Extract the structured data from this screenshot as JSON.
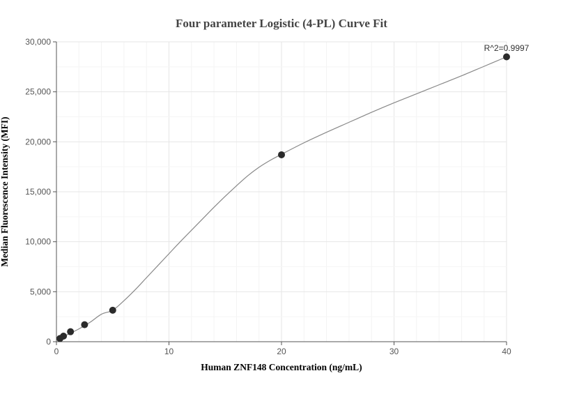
{
  "chart_data": {
    "type": "scatter",
    "title": "Four parameter Logistic (4-PL) Curve Fit",
    "xlabel": "Human ZNF148 Concentration (ng/mL)",
    "ylabel": "Median Fluorescence Intensity (MFI)",
    "xlim": [
      0,
      40
    ],
    "ylim": [
      0,
      30000
    ],
    "x_ticks": [
      0,
      10,
      20,
      30,
      40
    ],
    "x_tick_labels": [
      "0",
      "10",
      "20",
      "30",
      "40"
    ],
    "y_ticks": [
      0,
      5000,
      10000,
      15000,
      20000,
      25000,
      30000
    ],
    "y_tick_labels": [
      "0",
      "5,000",
      "10,000",
      "15,000",
      "20,000",
      "25,000",
      "30,000"
    ],
    "grid": true,
    "series": [
      {
        "type": "scatter",
        "x": [
          0.3125,
          0.625,
          1.25,
          2.5,
          5,
          20,
          40
        ],
        "y": [
          320,
          560,
          1000,
          1700,
          3150,
          18700,
          28500
        ],
        "color": "#2b2b2b"
      },
      {
        "type": "line",
        "x": [
          0,
          0.5,
          1,
          2,
          3,
          4,
          5,
          6,
          7,
          8,
          9,
          10,
          11,
          12,
          13,
          14,
          15,
          16,
          17,
          18,
          19,
          20,
          22,
          24,
          26,
          28,
          30,
          32,
          34,
          36,
          38,
          40
        ],
        "y": [
          300,
          480,
          720,
          1280,
          1950,
          2750,
          3150,
          4100,
          5200,
          6400,
          7600,
          8800,
          10000,
          11150,
          12300,
          13450,
          14550,
          15600,
          16600,
          17450,
          18150,
          18750,
          19900,
          20950,
          21950,
          22950,
          23900,
          24800,
          25700,
          26600,
          27550,
          28500
        ],
        "color": "#888888"
      }
    ],
    "annotations": [
      {
        "text": "R^2=0.9997",
        "x": 40,
        "y": 28500
      }
    ]
  }
}
